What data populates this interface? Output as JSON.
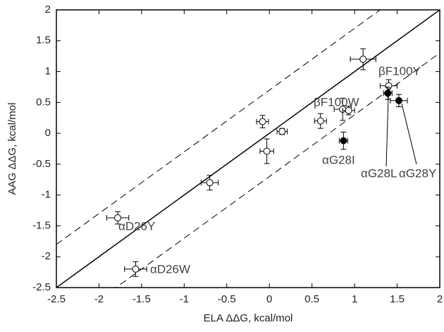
{
  "chart_data": {
    "type": "scatter",
    "x_label": "ELA ΔΔG, kcal/mol",
    "y_label": "AAG ΔΔG, kcal/mol",
    "xlim": [
      -2.5,
      2
    ],
    "ylim": [
      -2.5,
      2
    ],
    "xticks": [
      -2.5,
      -2,
      -1.5,
      -1,
      -0.5,
      0,
      0.5,
      1,
      1.5,
      2
    ],
    "yticks": [
      -2.5,
      -2,
      -1.5,
      -1,
      -0.5,
      0,
      0.5,
      1,
      1.5,
      2
    ],
    "reference_lines": [
      {
        "slope": 1,
        "intercept": 0,
        "style": "solid"
      },
      {
        "slope": 1,
        "intercept": 0.7,
        "style": "dashed"
      },
      {
        "slope": 1,
        "intercept": -0.7,
        "style": "dashed"
      }
    ],
    "series": [
      {
        "marker": "open",
        "color": "#000",
        "x": [
          -1.78,
          -1.57,
          -0.7,
          -0.08,
          -0.03,
          0.15,
          0.6,
          0.86,
          0.93,
          1.1,
          1.4
        ],
        "values": [
          -1.37,
          -2.2,
          -0.8,
          0.19,
          -0.29,
          0.03,
          0.2,
          0.39,
          0.37,
          1.2,
          0.77
        ],
        "xerr": [
          0.13,
          0.13,
          0.1,
          0.07,
          0.08,
          0.06,
          0.07,
          0.1,
          0.07,
          0.15,
          0.1
        ],
        "yerr": [
          0.1,
          0.12,
          0.12,
          0.1,
          0.2,
          0.05,
          0.12,
          0.18,
          0.07,
          0.17,
          0.1
        ]
      },
      {
        "marker": "filled",
        "color": "#000",
        "x": [
          0.87,
          1.39,
          1.52
        ],
        "values": [
          -0.12,
          0.65,
          0.53
        ],
        "xerr": [
          0.05,
          0.05,
          0.1
        ],
        "yerr": [
          0.14,
          0.1,
          0.1
        ]
      }
    ],
    "annotations": [
      {
        "text": "αD26Y"
      },
      {
        "text": "αD26W"
      },
      {
        "text": "βF100W"
      },
      {
        "text": "βF100Y"
      },
      {
        "text": "αG28I"
      },
      {
        "text": "αG28L"
      },
      {
        "text": "αG28Y"
      }
    ]
  }
}
